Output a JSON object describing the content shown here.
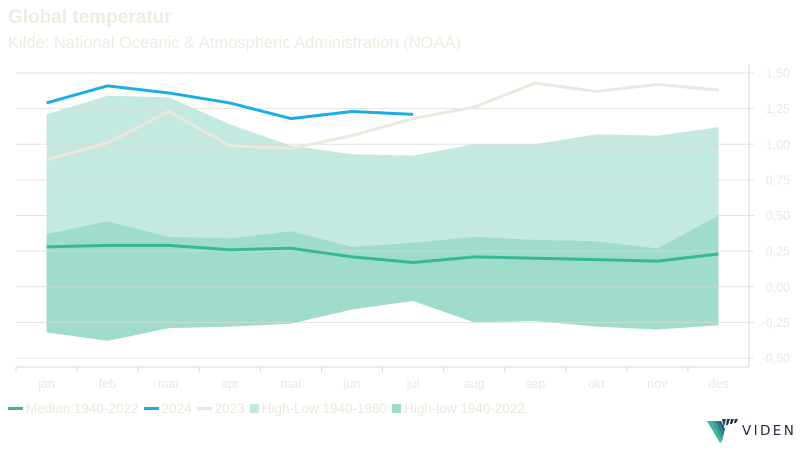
{
  "header": {
    "title": "Global temperatur",
    "subtitle": "Kilde: National Oceanic & Atmospheric Administration (NOAA)"
  },
  "brand": {
    "logo_text": "VIDEN",
    "logo_icon": "viden-stripe-triangle-icon"
  },
  "colors": {
    "median": "#36b999",
    "y2024": "#1aaee8",
    "y2023": "#ece8de",
    "band_light": "#c4e9e0",
    "band_dark": "#9fdccb",
    "grid": "#d9d9d9",
    "text": "#ece8dc",
    "logo_text": "#1e2b45"
  },
  "chart_data": {
    "type": "line",
    "title": "Global temperatur",
    "subtitle": "Kilde: National Oceanic & Atmospheric Administration (NOAA)",
    "xlabel": "",
    "ylabel": "",
    "categories": [
      "jan",
      "feb",
      "mar",
      "apr",
      "mai",
      "jun",
      "jul",
      "aug",
      "sep",
      "okt",
      "nov",
      "des"
    ],
    "ylim": [
      -0.5,
      1.5
    ],
    "yticks": [
      1.5,
      1.25,
      1.0,
      0.75,
      0.5,
      0.25,
      0.0,
      -0.25,
      -0.5
    ],
    "ytick_labels": [
      "1,50",
      "1,25",
      "1,00",
      "0,75",
      "0,50",
      "0,25",
      "0,00",
      "-0,25",
      "-0,50"
    ],
    "y_axis_position": "right",
    "grid": true,
    "legend_position": "bottom-left",
    "bands": [
      {
        "name": "High-Low 1940-1980",
        "type": "area",
        "upper": [
          1.21,
          1.34,
          1.33,
          1.14,
          0.99,
          0.93,
          0.92,
          1.0,
          1.0,
          1.07,
          1.06,
          1.12
        ],
        "lower": [
          0.37,
          0.46,
          0.35,
          0.34,
          0.39,
          0.28,
          0.31,
          0.35,
          0.33,
          0.32,
          0.27,
          0.5
        ]
      },
      {
        "name": "High-low 1940-2022",
        "type": "area",
        "upper": [
          0.37,
          0.46,
          0.35,
          0.34,
          0.39,
          0.28,
          0.31,
          0.35,
          0.33,
          0.32,
          0.27,
          0.5
        ],
        "lower": [
          -0.32,
          -0.38,
          -0.29,
          -0.28,
          -0.26,
          -0.16,
          -0.1,
          -0.25,
          -0.24,
          -0.28,
          -0.3,
          -0.27
        ]
      }
    ],
    "series": [
      {
        "name": "Median 1940-2022",
        "values": [
          0.28,
          0.29,
          0.29,
          0.26,
          0.27,
          0.21,
          0.17,
          0.21,
          0.2,
          0.19,
          0.18,
          0.23
        ]
      },
      {
        "name": "2024",
        "values": [
          1.29,
          1.41,
          1.36,
          1.29,
          1.18,
          1.23,
          1.21,
          null,
          null,
          null,
          null,
          null
        ]
      },
      {
        "name": "2023",
        "values": [
          0.89,
          1.01,
          1.23,
          0.99,
          0.97,
          1.06,
          1.18,
          1.26,
          1.43,
          1.37,
          1.42,
          1.38
        ]
      }
    ],
    "legend": [
      {
        "label": "Median 1940-2022",
        "kind": "line",
        "color_key": "median"
      },
      {
        "label": "2024",
        "kind": "line",
        "color_key": "y2024"
      },
      {
        "label": "2023",
        "kind": "line",
        "color_key": "y2023"
      },
      {
        "label": "High-Low 1940-1980",
        "kind": "box",
        "color_key": "band_light"
      },
      {
        "label": "High-low 1940-2022",
        "kind": "box",
        "color_key": "band_dark"
      }
    ]
  }
}
